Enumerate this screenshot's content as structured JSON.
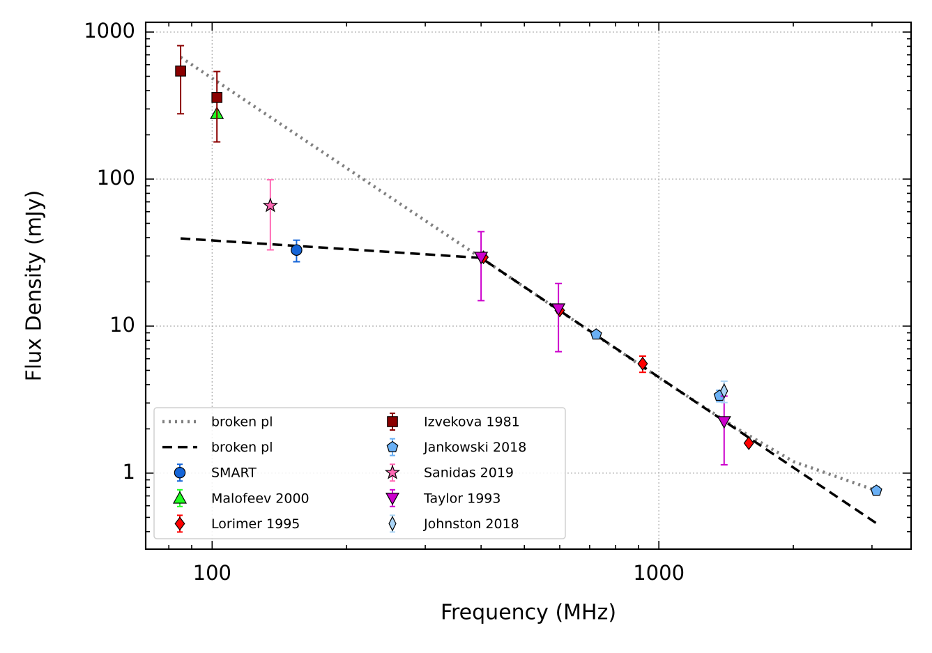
{
  "chart_data": {
    "type": "scatter",
    "xlabel": "Frequency (MHz)",
    "ylabel": "Flux Density (mJy)",
    "xlog": true,
    "ylog": true,
    "xlim": [
      71,
      3670
    ],
    "ylim": [
      0.304,
      1165
    ],
    "xticks": [
      100,
      1000
    ],
    "yticks": [
      1,
      10,
      100,
      1000
    ],
    "xminor_ticks": [
      80,
      90,
      200,
      300,
      400,
      500,
      600,
      700,
      800,
      900,
      2000,
      3000
    ],
    "yminor_ticks": [
      0.4,
      0.5,
      0.6,
      0.7,
      0.8,
      0.9,
      2,
      3,
      4,
      5,
      6,
      7,
      8,
      9,
      20,
      30,
      40,
      50,
      60,
      70,
      80,
      90,
      200,
      300,
      400,
      500,
      600,
      700,
      800,
      900
    ],
    "grid": true,
    "legend": "lower left",
    "series": [
      {
        "name": "broken pl",
        "kind": "line",
        "style": "dotted",
        "color": "#808080",
        "x": [
          85,
          400,
          1000,
          1500,
          2000,
          3069
        ],
        "values": [
          674,
          29.1,
          4.46,
          2.0,
          1.2,
          0.76
        ]
      },
      {
        "name": "broken pl",
        "kind": "line",
        "style": "dashed",
        "color": "#000000",
        "x": [
          85,
          400,
          3069
        ],
        "values": [
          39.5,
          29.1,
          0.456
        ]
      },
      {
        "name": "SMART",
        "kind": "scatter",
        "marker": "circle",
        "color": "#1565d8",
        "x": [
          154.5
        ],
        "values": [
          32.9
        ],
        "errors": [
          5.5
        ]
      },
      {
        "name": "Malofeev 2000",
        "kind": "scatter",
        "marker": "triangle-up",
        "color": "#22ff22",
        "x": [
          102.5
        ],
        "values": [
          279
        ]
      },
      {
        "name": "Lorimer 1995",
        "kind": "scatter",
        "marker": "diamond",
        "color": "#ff0000",
        "x": [
          405,
          600,
          920,
          1590
        ],
        "values": [
          29.4,
          12.8,
          5.55,
          1.6
        ],
        "errors": [
          1,
          0.5,
          0.7,
          0.05
        ]
      },
      {
        "name": "Izvekova 1981",
        "kind": "scatter",
        "marker": "square",
        "color": "#8b0000",
        "x": [
          85,
          102.5
        ],
        "values": [
          543,
          359
        ],
        "errors": [
          265,
          180
        ]
      },
      {
        "name": "Jankowski 2018",
        "kind": "scatter",
        "marker": "pentagon",
        "color": "#6ab0f5",
        "x": [
          724,
          1367,
          3069
        ],
        "values": [
          8.77,
          3.36,
          0.76
        ],
        "errors": [
          0.3,
          0.3,
          0.05
        ]
      },
      {
        "name": "Sanidas 2019",
        "kind": "scatter",
        "marker": "star",
        "color": "#ff69b4",
        "x": [
          135
        ],
        "values": [
          66
        ],
        "errors": [
          33
        ]
      },
      {
        "name": "Taylor 1993",
        "kind": "scatter",
        "marker": "triangle-down",
        "color": "#cc00cc",
        "x": [
          400,
          596,
          1400
        ],
        "values": [
          29.4,
          13.1,
          2.24
        ],
        "errors": [
          14.5,
          6.4,
          1.1
        ]
      },
      {
        "name": "Johnston 2018",
        "kind": "scatter",
        "marker": "thin-diamond",
        "color": "#aad4f5",
        "x": [
          1400
        ],
        "values": [
          3.62
        ],
        "errors": [
          0.6
        ]
      }
    ]
  }
}
